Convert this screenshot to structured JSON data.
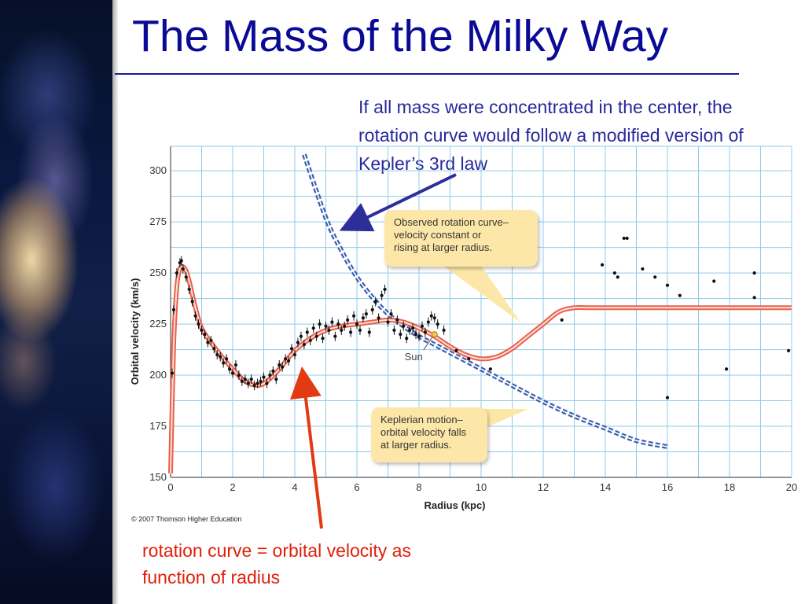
{
  "slide": {
    "title": "The Mass of the Milky Way",
    "top_note": "If all mass were concentrated in the center, the rotation curve would follow a modified version of Kepler’s 3rd law",
    "bottom_note": "rotation curve = orbital velocity as function of radius",
    "copyright": "© 2007 Thomson Higher Education",
    "title_color": "#0a0a96",
    "top_note_color": "#28289a",
    "bottom_note_color": "#e0200a"
  },
  "callouts": {
    "observed": [
      "Observed rotation curve–",
      "velocity constant or",
      "rising at larger radius."
    ],
    "kepler": [
      "Keplerian motion–",
      "orbital velocity falls",
      "at larger radius."
    ]
  },
  "chart_data": {
    "type": "scatter",
    "xlabel": "Radius (kpc)",
    "ylabel": "Orbital velocity (km/s)",
    "xlim": [
      0,
      20
    ],
    "ylim": [
      150,
      312
    ],
    "xticks": [
      0,
      2,
      4,
      6,
      8,
      10,
      12,
      14,
      16,
      18,
      20
    ],
    "yticks": [
      150,
      175,
      200,
      225,
      250,
      275,
      300
    ],
    "grid": true,
    "sun_label": "Sun",
    "sun_point": [
      8.5,
      220
    ],
    "colors": {
      "observed_curve": "#e8604c",
      "keplerian_curve": "#3a5fb0",
      "grid": "#8fcbe8",
      "points": "#111111",
      "arrow_blue": "#2e2e9a",
      "arrow_red": "#e23a12"
    },
    "series": [
      {
        "role": "observed rotation curve",
        "x": [
          0,
          0.1,
          0.2,
          0.3,
          0.4,
          0.5,
          0.6,
          0.8,
          1.0,
          1.3,
          1.6,
          2.0,
          2.4,
          2.8,
          3.1,
          3.5,
          4.0,
          4.5,
          5.0,
          5.5,
          6.0,
          6.5,
          7.0,
          7.5,
          8.0,
          8.5,
          9.0,
          9.5,
          10.0,
          10.5,
          11.0,
          11.5,
          12.0,
          12.5,
          13.0,
          13.5,
          14.0,
          16.0,
          18.0,
          20.0
        ],
        "y": [
          152,
          215,
          243,
          252,
          253,
          251,
          246,
          233,
          223,
          216,
          210,
          203,
          197,
          195,
          197,
          203,
          212,
          218,
          222,
          224,
          225,
          226,
          227,
          226,
          223,
          219,
          214,
          210,
          208,
          209,
          213,
          219,
          225,
          231,
          233,
          233,
          233,
          233,
          233,
          233
        ]
      },
      {
        "role": "Keplerian motion",
        "x": [
          4.3,
          5.0,
          5.5,
          6.0,
          6.5,
          7.0,
          7.5,
          8.0,
          8.5,
          9.0,
          10.0,
          11.0,
          12.0,
          13.0,
          14.0,
          15.0,
          16.0
        ],
        "y": [
          308,
          277,
          261,
          248,
          238,
          230,
          224,
          219,
          215,
          211,
          203,
          195,
          187,
          180,
          174,
          168,
          165
        ]
      },
      {
        "role": "data points",
        "x": [
          0.05,
          0.1,
          0.2,
          0.3,
          0.35,
          0.4,
          0.5,
          0.6,
          0.7,
          0.8,
          0.9,
          1.0,
          1.1,
          1.2,
          1.3,
          1.4,
          1.5,
          1.6,
          1.7,
          1.8,
          1.9,
          2.0,
          2.1,
          2.2,
          2.3,
          2.4,
          2.5,
          2.6,
          2.7,
          2.8,
          2.9,
          3.0,
          3.1,
          3.2,
          3.3,
          3.4,
          3.5,
          3.6,
          3.7,
          3.8,
          3.9,
          4.0,
          4.1,
          4.2,
          4.3,
          4.4,
          4.5,
          4.6,
          4.7,
          4.8,
          4.9,
          5.0,
          5.1,
          5.2,
          5.3,
          5.4,
          5.5,
          5.6,
          5.7,
          5.8,
          5.9,
          6.0,
          6.1,
          6.2,
          6.3,
          6.4,
          6.5,
          6.6,
          6.7,
          6.8,
          6.9,
          7.0,
          7.1,
          7.2,
          7.3,
          7.4,
          7.5,
          7.6,
          7.7,
          7.8,
          7.9,
          8.0,
          8.1,
          8.2,
          8.3,
          8.4,
          8.5,
          8.6,
          8.8,
          9.2,
          9.6,
          10.3,
          12.6,
          13.9,
          14.3,
          14.4,
          14.6,
          14.7,
          15.2,
          15.6,
          16.0,
          16.0,
          16.4,
          17.5,
          17.9,
          18.8,
          18.8,
          19.9
        ],
        "y": [
          201,
          232,
          250,
          255,
          256,
          252,
          248,
          242,
          236,
          229,
          225,
          222,
          220,
          216,
          217,
          213,
          210,
          209,
          206,
          208,
          203,
          201,
          205,
          200,
          197,
          198,
          196,
          198,
          195,
          196,
          197,
          199,
          196,
          200,
          202,
          198,
          205,
          204,
          208,
          207,
          213,
          210,
          216,
          219,
          215,
          221,
          217,
          223,
          219,
          225,
          218,
          224,
          222,
          226,
          219,
          225,
          222,
          224,
          227,
          221,
          229,
          225,
          222,
          228,
          230,
          221,
          232,
          236,
          228,
          239,
          242,
          226,
          230,
          222,
          227,
          220,
          224,
          218,
          222,
          223,
          220,
          219,
          224,
          221,
          226,
          229,
          228,
          225,
          222,
          212,
          208,
          203,
          227,
          254,
          250,
          248,
          267,
          267,
          252,
          248,
          244,
          189,
          239,
          246,
          203,
          238,
          250,
          212
        ]
      }
    ]
  }
}
